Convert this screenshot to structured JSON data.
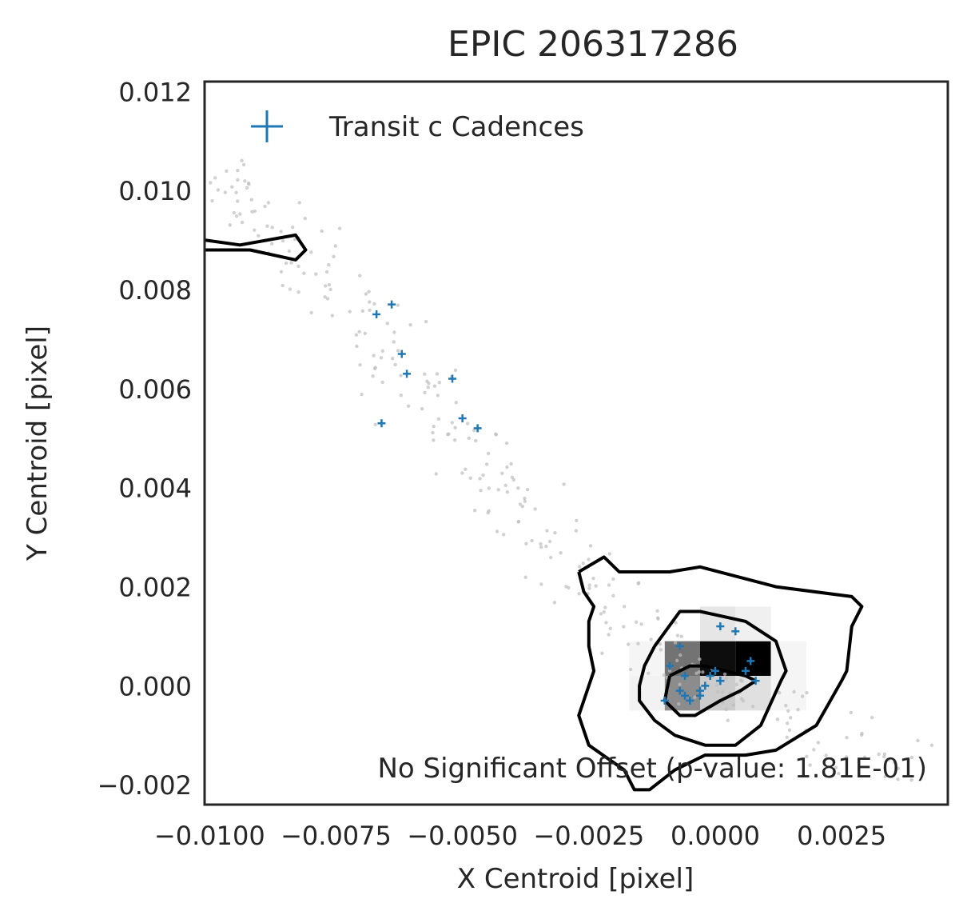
{
  "chart_data": {
    "type": "scatter",
    "title": "EPIC 206317286",
    "xlabel": "X Centroid [pixel]",
    "ylabel": "Y Centroid [pixel]",
    "xlim": [
      -0.0101,
      0.0046
    ],
    "ylim": [
      -0.0024,
      0.0122
    ],
    "x_ticks": [
      -0.01,
      -0.0075,
      -0.005,
      -0.0025,
      0.0,
      0.0025
    ],
    "x_tick_labels": [
      "−0.0100",
      "−0.0075",
      "−0.0050",
      "−0.0025",
      "0.0000",
      "0.0025"
    ],
    "y_ticks": [
      -0.002,
      0.0,
      0.002,
      0.004,
      0.006,
      0.008,
      0.01,
      0.012
    ],
    "y_tick_labels": [
      "−0.002",
      "0.000",
      "0.002",
      "0.004",
      "0.006",
      "0.008",
      "0.010",
      "0.012"
    ],
    "grid": false,
    "legend": {
      "position": "top-left",
      "entries": [
        {
          "label": "Transit c Cadences",
          "marker": "+",
          "color": "#1f77b4"
        }
      ]
    },
    "annotation": "No Significant Offset (p-value: 1.81E-01)",
    "colors": {
      "transit": "#1f77b4",
      "background_points": "#bdbdbd",
      "contour": "#000000",
      "frame": "#262626"
    },
    "background_points_trend": [
      [
        -0.0098,
        0.0103
      ],
      [
        -0.0095,
        0.0099
      ],
      [
        -0.009,
        0.0094
      ],
      [
        -0.0085,
        0.009
      ],
      [
        -0.008,
        0.0085
      ],
      [
        -0.0075,
        0.0079
      ],
      [
        -0.007,
        0.0074
      ],
      [
        -0.0065,
        0.0068
      ],
      [
        -0.006,
        0.0062
      ],
      [
        -0.0055,
        0.0056
      ],
      [
        -0.005,
        0.005
      ],
      [
        -0.0045,
        0.0044
      ],
      [
        -0.004,
        0.0038
      ],
      [
        -0.0035,
        0.0033
      ],
      [
        -0.003,
        0.0027
      ],
      [
        -0.0025,
        0.0021
      ],
      [
        -0.002,
        0.0016
      ],
      [
        -0.0015,
        0.0011
      ],
      [
        -0.001,
        0.0007
      ],
      [
        -0.0005,
        0.0003
      ],
      [
        0.0,
        0.0
      ],
      [
        0.0008,
        -0.0004
      ],
      [
        0.0016,
        -0.0008
      ],
      [
        0.0024,
        -0.0012
      ],
      [
        0.0034,
        -0.0015
      ]
    ],
    "transit_cadences": [
      [
        -0.0067,
        0.0075
      ],
      [
        -0.0064,
        0.0077
      ],
      [
        -0.0062,
        0.0067
      ],
      [
        -0.0061,
        0.0063
      ],
      [
        -0.0052,
        0.0062
      ],
      [
        -0.0066,
        0.0053
      ],
      [
        -0.005,
        0.0054
      ],
      [
        -0.0047,
        0.0052
      ],
      [
        -0.0009,
        0.0004
      ],
      [
        -0.0007,
        0.0008
      ],
      [
        -0.0006,
        0.0002
      ],
      [
        -0.0007,
        -0.0001
      ],
      [
        -0.0006,
        -0.0002
      ],
      [
        -0.0005,
        -0.0003
      ],
      [
        -0.0003,
        -0.0001
      ],
      [
        -0.0002,
        0.0
      ],
      [
        0.0,
        0.0003
      ],
      [
        -0.0001,
        0.0002
      ],
      [
        0.0001,
        0.0001
      ],
      [
        0.0001,
        0.0001
      ],
      [
        0.0001,
        0.0012
      ],
      [
        0.0004,
        0.0011
      ],
      [
        0.0007,
        0.0005
      ],
      [
        0.0008,
        0.0001
      ],
      [
        0.0006,
        0.0003
      ],
      [
        -0.001,
        -0.0003
      ],
      [
        -0.0003,
        -0.0002
      ]
    ],
    "contours": [
      [
        [
          -0.0101,
          0.009
        ],
        [
          -0.0094,
          0.0089
        ],
        [
          -0.0083,
          0.0091
        ],
        [
          -0.0081,
          0.0088
        ],
        [
          -0.0083,
          0.0086
        ],
        [
          -0.0092,
          0.0088
        ],
        [
          -0.0101,
          0.0088
        ]
      ],
      [
        [
          -0.0027,
          0.0023
        ],
        [
          -0.0022,
          0.0026
        ],
        [
          -0.0019,
          0.0023
        ],
        [
          -0.0009,
          0.0023
        ],
        [
          -0.0003,
          0.0024
        ],
        [
          0.0012,
          0.002
        ],
        [
          0.0027,
          0.0018
        ],
        [
          0.0029,
          0.0016
        ],
        [
          0.0027,
          0.0012
        ],
        [
          0.0026,
          0.0003
        ],
        [
          0.0025,
          0.0001
        ],
        [
          0.002,
          -0.0008
        ],
        [
          0.0012,
          -0.0013
        ],
        [
          0.0006,
          -0.0014
        ],
        [
          -0.0002,
          -0.0014
        ],
        [
          -0.0008,
          -0.0017
        ],
        [
          -0.0013,
          -0.0021
        ],
        [
          -0.0016,
          -0.0021
        ],
        [
          -0.0018,
          -0.0017
        ],
        [
          -0.0025,
          -0.0012
        ],
        [
          -0.0027,
          -0.0006
        ],
        [
          -0.0025,
          0.0
        ],
        [
          -0.0024,
          0.0003
        ],
        [
          -0.0025,
          0.0008
        ],
        [
          -0.0025,
          0.0013
        ],
        [
          -0.0024,
          0.0016
        ],
        [
          -0.0026,
          0.0019
        ],
        [
          -0.0027,
          0.0023
        ]
      ],
      [
        [
          -0.0012,
          0.0008
        ],
        [
          -0.0007,
          0.0015
        ],
        [
          -0.0003,
          0.0015
        ],
        [
          0.0006,
          0.0013
        ],
        [
          0.0012,
          0.0009
        ],
        [
          0.0014,
          0.0003
        ],
        [
          0.0013,
          0.0001
        ],
        [
          0.0009,
          -0.0008
        ],
        [
          0.0004,
          -0.0012
        ],
        [
          -0.0002,
          -0.0012
        ],
        [
          -0.0008,
          -0.001
        ],
        [
          -0.0012,
          -0.0007
        ],
        [
          -0.0015,
          -0.0003
        ],
        [
          -0.0015,
          0.0
        ],
        [
          -0.0014,
          0.0004
        ],
        [
          -0.0012,
          0.0008
        ]
      ],
      [
        [
          -0.0009,
          0.0002
        ],
        [
          -0.0005,
          0.0004
        ],
        [
          -0.0002,
          0.0004
        ],
        [
          0.0006,
          0.0002
        ],
        [
          0.0008,
          0.0001
        ],
        [
          0.0005,
          -0.0001
        ],
        [
          0.0001,
          -0.0003
        ],
        [
          -0.0004,
          -0.0006
        ],
        [
          -0.0007,
          -0.0006
        ],
        [
          -0.001,
          -0.0003
        ],
        [
          -0.0009,
          0.0002
        ]
      ]
    ]
  }
}
